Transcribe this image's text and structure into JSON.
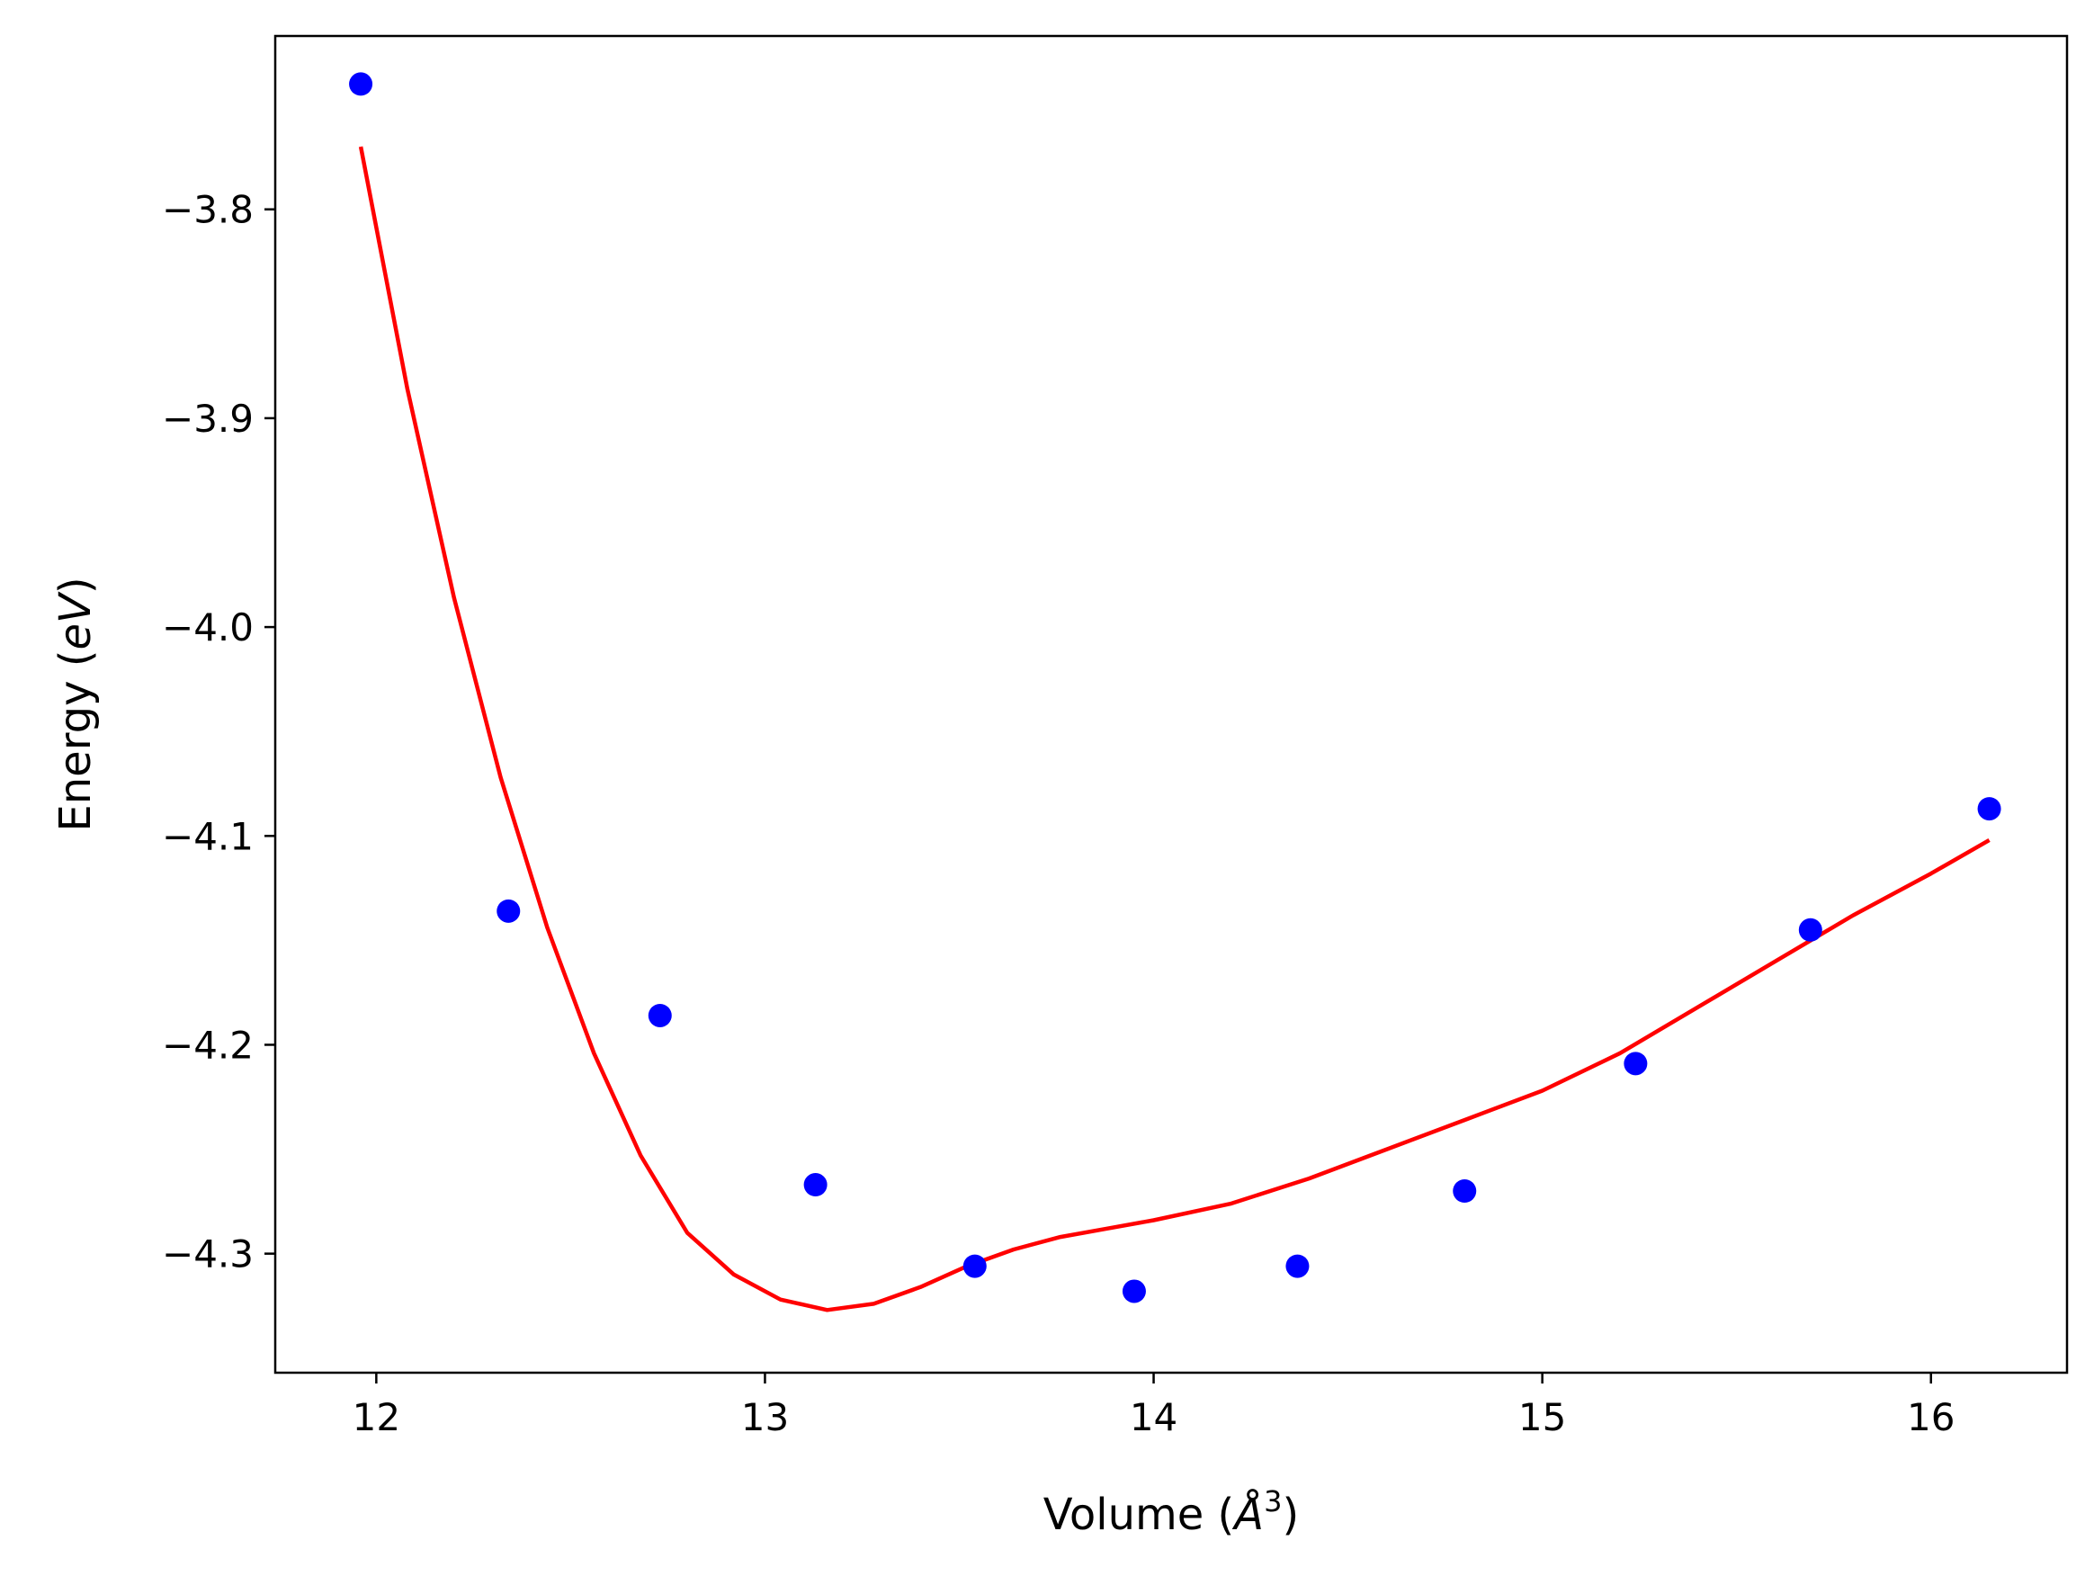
{
  "chart_data": {
    "type": "scatter",
    "title": "",
    "xlabel": {
      "prefix": "Volume (",
      "italic": "Å",
      "sup": "3",
      "suffix": ")"
    },
    "ylabel": {
      "prefix": "Energy (",
      "italic": "eV",
      "suffix": ")"
    },
    "xlim": [
      11.74,
      16.35
    ],
    "ylim": [
      -4.357,
      -3.717
    ],
    "xticks": [
      {
        "value": 12,
        "label": "12"
      },
      {
        "value": 13,
        "label": "13"
      },
      {
        "value": 14,
        "label": "14"
      },
      {
        "value": 15,
        "label": "15"
      },
      {
        "value": 16,
        "label": "16"
      }
    ],
    "yticks": [
      {
        "value": -3.8,
        "label": "−3.8"
      },
      {
        "value": -3.9,
        "label": "−3.9"
      },
      {
        "value": -4.0,
        "label": "−4.0"
      },
      {
        "value": -4.1,
        "label": "−4.1"
      },
      {
        "value": -4.2,
        "label": "−4.2"
      },
      {
        "value": -4.3,
        "label": "−4.3"
      }
    ],
    "grid": false,
    "series": [
      {
        "kind": "scatter",
        "color": "#0000ff",
        "x": [
          11.96,
          12.34,
          12.73,
          13.13,
          13.54,
          13.95,
          14.37,
          14.8,
          15.24,
          15.69,
          16.15
        ],
        "y": [
          -3.74,
          -4.136,
          -4.186,
          -4.267,
          -4.306,
          -4.318,
          -4.306,
          -4.27,
          -4.209,
          -4.145,
          -4.087
        ]
      },
      {
        "kind": "line",
        "color": "#ff0000",
        "x": [
          11.96,
          12.08,
          12.2,
          12.32,
          12.44,
          12.56,
          12.68,
          12.8,
          12.92,
          13.04,
          13.16,
          13.28,
          13.4,
          13.52,
          13.64,
          13.76,
          13.88,
          14.0,
          14.2,
          14.4,
          14.6,
          14.8,
          15.0,
          15.2,
          15.4,
          15.6,
          15.8,
          16.0,
          16.15
        ],
        "y": [
          -3.77,
          -3.886,
          -3.986,
          -4.072,
          -4.144,
          -4.204,
          -4.253,
          -4.29,
          -4.31,
          -4.322,
          -4.327,
          -4.324,
          -4.316,
          -4.306,
          -4.298,
          -4.292,
          -4.288,
          -4.284,
          -4.276,
          -4.264,
          -4.25,
          -4.236,
          -4.222,
          -4.204,
          -4.182,
          -4.16,
          -4.138,
          -4.118,
          -4.102
        ]
      }
    ]
  }
}
